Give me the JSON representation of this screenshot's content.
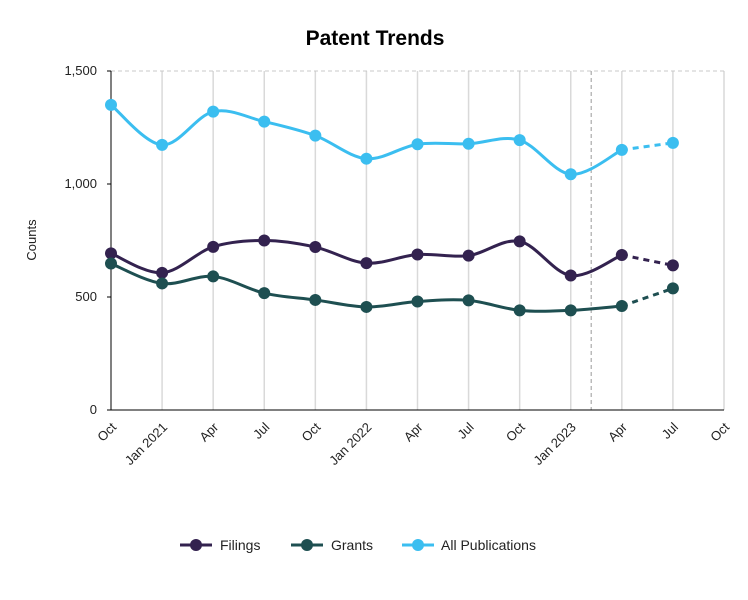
{
  "chart_data": {
    "type": "line",
    "title": "Patent Trends",
    "ylabel": "Counts",
    "xlabel": "",
    "ylim": [
      0,
      1500
    ],
    "y_ticks": [
      0,
      500,
      1000,
      1500
    ],
    "y_tick_labels": [
      "0",
      "500",
      "1,000",
      "1,500"
    ],
    "x_tick_labels": [
      "Oct",
      "Jan 2021",
      "Apr",
      "Jul",
      "Oct",
      "Jan 2022",
      "Apr",
      "Jul",
      "Oct",
      "Jan 2023",
      "Apr",
      "Jul",
      "Oct"
    ],
    "x_categories": [
      "Oct 2020",
      "Jan 2021",
      "Apr 2021",
      "Jul 2021",
      "Oct 2021",
      "Jan 2022",
      "Apr 2022",
      "Jul 2022",
      "Oct 2022",
      "Jan 2023",
      "Apr 2023",
      "Jul 2023"
    ],
    "forecast_start_index": 10,
    "projection_marker_label": "",
    "grid": "vertical-solid, top-dashed",
    "legend": "bottom-center",
    "series": [
      {
        "name": "Filings",
        "color": "#33224f",
        "values": [
          693,
          607,
          722,
          750,
          721,
          650,
          688,
          683,
          746,
          595,
          686,
          640
        ]
      },
      {
        "name": "Grants",
        "color": "#1e4f51",
        "values": [
          648,
          560,
          591,
          517,
          487,
          456,
          480,
          485,
          441,
          441,
          460,
          538
        ]
      },
      {
        "name": "All Publications",
        "color": "#3bbef0",
        "values": [
          1350,
          1173,
          1320,
          1276,
          1214,
          1112,
          1176,
          1178,
          1194,
          1043,
          1151,
          1182
        ]
      }
    ]
  }
}
